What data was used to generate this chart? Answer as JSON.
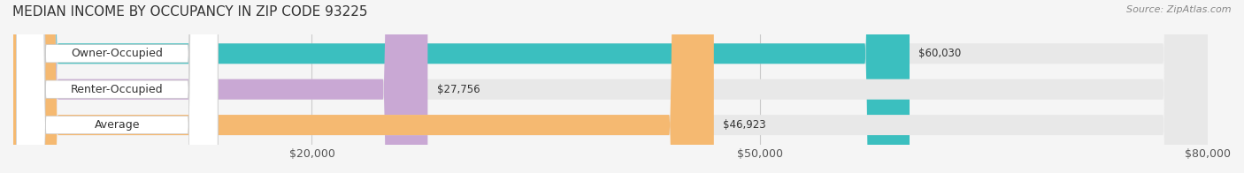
{
  "title": "MEDIAN INCOME BY OCCUPANCY IN ZIP CODE 93225",
  "source": "Source: ZipAtlas.com",
  "categories": [
    "Owner-Occupied",
    "Renter-Occupied",
    "Average"
  ],
  "values": [
    60030,
    27756,
    46923
  ],
  "bar_colors": [
    "#3bbfbf",
    "#c9a8d4",
    "#f5b971"
  ],
  "bar_bg_color": "#e8e8e8",
  "label_bg_color": "#ffffff",
  "xlim": [
    0,
    80000
  ],
  "xticks": [
    20000,
    50000,
    80000
  ],
  "xtick_labels": [
    "$20,000",
    "$50,000",
    "$80,000"
  ],
  "value_labels": [
    "$60,030",
    "$27,756",
    "$46,923"
  ],
  "bar_height": 0.55,
  "title_fontsize": 11,
  "label_fontsize": 9,
  "value_fontsize": 8.5,
  "source_fontsize": 8,
  "background_color": "#f5f5f5"
}
